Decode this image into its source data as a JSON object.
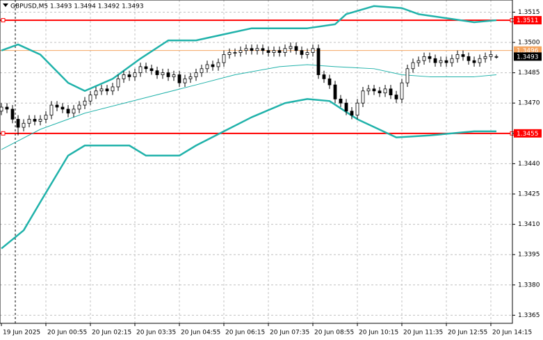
{
  "chart_data": {
    "type": "candlestick",
    "title": "GBPUSD,M5  1.3493 1.3494 1.3492 1.3493",
    "categories": [
      "19 Jun 2025",
      null,
      null,
      null,
      null,
      null,
      null,
      null,
      "20 Jun 00:55",
      null,
      null,
      null,
      null,
      null,
      null,
      null,
      "20 Jun 02:15",
      null,
      null,
      null,
      null,
      null,
      null,
      null,
      "20 Jun 03:35",
      null,
      null,
      null,
      null,
      null,
      null,
      null,
      "20 Jun 04:55",
      null,
      null,
      null,
      null,
      null,
      null,
      null,
      "20 Jun 06:15",
      null,
      null,
      null,
      null,
      null,
      null,
      null,
      "20 Jun 07:35",
      null,
      null,
      null,
      null,
      null,
      null,
      null,
      "20 Jun 08:55",
      null,
      null,
      null,
      null,
      null,
      null,
      null,
      "20 Jun 10:15",
      null,
      null,
      null,
      null,
      null,
      null,
      null,
      "20 Jun 11:35",
      null,
      null,
      null,
      null,
      null,
      null,
      null,
      "20 Jun 12:55",
      null,
      null,
      null,
      null,
      null,
      null,
      null,
      "20 Jun 14:15",
      null
    ],
    "open": [
      1.3466,
      1.3468,
      1.3467,
      1.3462,
      1.3458,
      1.346,
      1.3462,
      1.3461,
      1.3462,
      1.3464,
      1.3469,
      1.3468,
      1.3467,
      1.3465,
      1.3467,
      1.3469,
      1.3471,
      1.3474,
      1.3476,
      1.3477,
      1.3476,
      1.3478,
      1.3482,
      1.3484,
      1.3483,
      1.3485,
      1.3488,
      1.3487,
      1.3486,
      1.3484,
      1.3485,
      1.3483,
      1.3484,
      1.348,
      1.3482,
      1.3483,
      1.3485,
      1.3487,
      1.3489,
      1.3488,
      1.349,
      1.3494,
      1.3495,
      1.3495,
      1.3496,
      1.3497,
      1.3496,
      1.3497,
      1.3496,
      1.3495,
      1.3496,
      1.3495,
      1.3497,
      1.3498,
      1.3496,
      1.3494,
      1.3495,
      1.3497,
      1.3484,
      1.3482,
      1.3479,
      1.3472,
      1.347,
      1.3466,
      1.3464,
      1.347,
      1.3476,
      1.3477,
      1.3476,
      1.3475,
      1.3477,
      1.3474,
      1.3472,
      1.348,
      1.3487,
      1.349,
      1.3491,
      1.3493,
      1.3492,
      1.349,
      1.3491,
      1.349,
      1.3492,
      1.3494,
      1.3493,
      1.3491,
      1.349,
      1.3492,
      1.3493,
      1.3493
    ],
    "high": [
      1.347,
      1.347,
      1.3469,
      1.3464,
      1.3462,
      1.3464,
      1.3464,
      1.3464,
      1.3466,
      1.3471,
      1.3471,
      1.347,
      1.3469,
      1.3469,
      1.3471,
      1.3473,
      1.3476,
      1.3478,
      1.3479,
      1.3479,
      1.348,
      1.3484,
      1.3486,
      1.3486,
      1.3487,
      1.349,
      1.349,
      1.3489,
      1.3488,
      1.3487,
      1.3487,
      1.3486,
      1.3486,
      1.3484,
      1.3485,
      1.3487,
      1.3489,
      1.3491,
      1.3491,
      1.3492,
      1.3496,
      1.3497,
      1.3497,
      1.3498,
      1.3499,
      1.3499,
      1.3499,
      1.3499,
      1.3498,
      1.3498,
      1.3498,
      1.3499,
      1.35,
      1.35,
      1.3498,
      1.3497,
      1.3499,
      1.3499,
      1.3486,
      1.3484,
      1.3481,
      1.3474,
      1.3472,
      1.3468,
      1.3472,
      1.3478,
      1.3479,
      1.3479,
      1.3478,
      1.3479,
      1.3479,
      1.3476,
      1.3482,
      1.3489,
      1.3492,
      1.3493,
      1.3495,
      1.3495,
      1.3494,
      1.3493,
      1.3493,
      1.3494,
      1.3496,
      1.3496,
      1.3495,
      1.3493,
      1.3494,
      1.3495,
      1.3496,
      1.3494
    ],
    "low": [
      1.3464,
      1.3465,
      1.346,
      1.3454,
      1.3456,
      1.3458,
      1.3459,
      1.3459,
      1.346,
      1.3462,
      1.3466,
      1.3465,
      1.3463,
      1.3463,
      1.3465,
      1.3467,
      1.3469,
      1.3472,
      1.3474,
      1.3474,
      1.3474,
      1.3476,
      1.348,
      1.3481,
      1.3481,
      1.3483,
      1.3485,
      1.3484,
      1.3482,
      1.3482,
      1.3481,
      1.3481,
      1.3478,
      1.3478,
      1.348,
      1.3481,
      1.3483,
      1.3485,
      1.3486,
      1.3486,
      1.3488,
      1.3492,
      1.3493,
      1.3493,
      1.3494,
      1.3494,
      1.3494,
      1.3494,
      1.3493,
      1.3493,
      1.3493,
      1.3493,
      1.3495,
      1.3494,
      1.3492,
      1.3492,
      1.3493,
      1.3482,
      1.348,
      1.3477,
      1.347,
      1.3468,
      1.3464,
      1.3462,
      1.3462,
      1.3468,
      1.3474,
      1.3474,
      1.3473,
      1.3473,
      1.3472,
      1.347,
      1.347,
      1.3478,
      1.3485,
      1.3488,
      1.3489,
      1.349,
      1.3488,
      1.3488,
      1.3488,
      1.3488,
      1.349,
      1.3491,
      1.3489,
      1.3488,
      1.3488,
      1.349,
      1.3491,
      1.3492
    ],
    "close": [
      1.3468,
      1.3467,
      1.3462,
      1.3458,
      1.346,
      1.3462,
      1.3461,
      1.3462,
      1.3464,
      1.3469,
      1.3468,
      1.3467,
      1.3465,
      1.3467,
      1.3469,
      1.3471,
      1.3474,
      1.3476,
      1.3477,
      1.3476,
      1.3478,
      1.3482,
      1.3484,
      1.3483,
      1.3485,
      1.3488,
      1.3487,
      1.3486,
      1.3484,
      1.3485,
      1.3483,
      1.3484,
      1.348,
      1.3482,
      1.3483,
      1.3485,
      1.3487,
      1.3489,
      1.3488,
      1.349,
      1.3494,
      1.3495,
      1.3495,
      1.3496,
      1.3497,
      1.3496,
      1.3497,
      1.3496,
      1.3495,
      1.3496,
      1.3495,
      1.3497,
      1.3498,
      1.3496,
      1.3494,
      1.3495,
      1.3497,
      1.3484,
      1.3482,
      1.3479,
      1.3472,
      1.347,
      1.3466,
      1.3464,
      1.347,
      1.3476,
      1.3477,
      1.3476,
      1.3475,
      1.3477,
      1.3474,
      1.3472,
      1.348,
      1.3487,
      1.349,
      1.3491,
      1.3493,
      1.3492,
      1.349,
      1.3491,
      1.349,
      1.3492,
      1.3494,
      1.3493,
      1.3491,
      1.349,
      1.3492,
      1.3493,
      1.3494,
      1.3493
    ],
    "up_color": "#ffffff",
    "down_color": "#000000",
    "wick_color": "#000000",
    "overlays": [
      {
        "color": "#20b2aa",
        "width": 2.5,
        "x": [
          0,
          3,
          7,
          12,
          15,
          20,
          25,
          30,
          35,
          40,
          45,
          50,
          55,
          60,
          62,
          67,
          72,
          75,
          80,
          85,
          89
        ],
        "values": [
          1.3496,
          1.3499,
          1.3494,
          1.348,
          1.3476,
          1.3482,
          1.3492,
          1.3501,
          1.3501,
          1.3504,
          1.3507,
          1.3507,
          1.3507,
          1.3509,
          1.3514,
          1.3518,
          1.3517,
          1.3514,
          1.3512,
          1.351,
          1.3511
        ]
      },
      {
        "color": "#20b2aa",
        "width": 1,
        "x": [
          0,
          7,
          15,
          25,
          35,
          42,
          50,
          55,
          60,
          67,
          72,
          77,
          85,
          89
        ],
        "values": [
          1.3447,
          1.3457,
          1.3465,
          1.3472,
          1.3479,
          1.3484,
          1.3488,
          1.3489,
          1.3488,
          1.3487,
          1.3484,
          1.3483,
          1.3483,
          1.3484
        ]
      },
      {
        "color": "#20b2aa",
        "width": 2.5,
        "x": [
          0,
          4,
          7,
          12,
          15,
          23,
          26,
          32,
          35,
          40,
          45,
          51,
          55,
          59,
          64,
          71,
          77,
          85,
          89
        ],
        "values": [
          1.3398,
          1.3407,
          1.3421,
          1.3444,
          1.3449,
          1.3449,
          1.3444,
          1.3444,
          1.3449,
          1.3456,
          1.3463,
          1.347,
          1.3472,
          1.3471,
          1.3462,
          1.3453,
          1.3454,
          1.3456,
          1.3456
        ]
      }
    ],
    "hlines": [
      {
        "value": 1.3511,
        "color": "#ff0000",
        "width": 2
      },
      {
        "value": 1.3455,
        "color": "#ff0000",
        "width": 2
      },
      {
        "value": 1.3496,
        "color": "#f4a460",
        "width": 1
      },
      {
        "value": 1.3493,
        "color": "#000000",
        "width": 0
      }
    ],
    "ylim": [
      1.3361,
      1.3521
    ],
    "yticks": [
      1.3515,
      {
        "value": 1.35,
        "label": "1.3500"
      },
      1.3485,
      {
        "value": 1.347,
        "label": "1.3470"
      },
      1.3455,
      {
        "value": 1.344,
        "label": "1.3440"
      },
      1.3425,
      {
        "value": 1.341,
        "label": "1.3410"
      },
      1.3395,
      {
        "value": 1.338,
        "label": "1.3380"
      },
      1.3365
    ],
    "grid": true
  }
}
